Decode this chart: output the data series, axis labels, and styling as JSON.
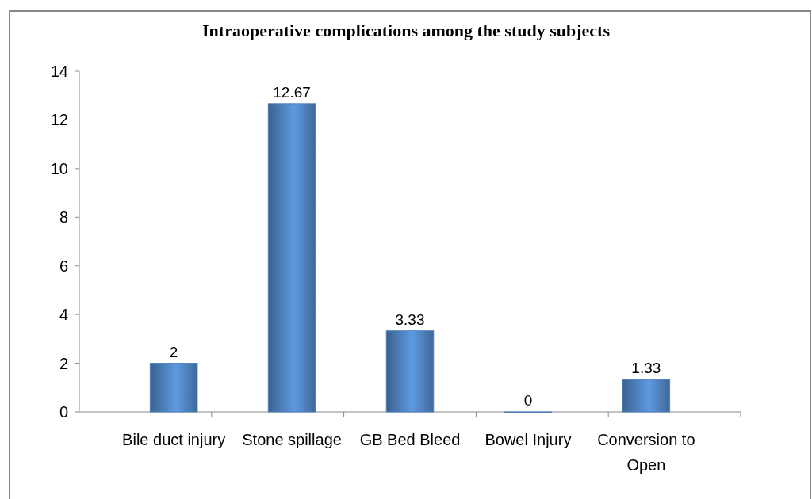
{
  "chart_data": {
    "type": "bar",
    "title": "Intraoperative complications among the study subjects",
    "categories": [
      "Bile duct injury",
      "Stone spillage",
      "GB Bed Bleed",
      "Bowel Injury",
      "Conversion to Open"
    ],
    "values": [
      2,
      12.67,
      3.33,
      0,
      1.33
    ],
    "color": "#4f81bd",
    "ylim": [
      0,
      14
    ],
    "yticks": [
      0,
      2,
      4,
      6,
      8,
      10,
      12,
      14
    ],
    "grid": false,
    "data_labels": true
  }
}
